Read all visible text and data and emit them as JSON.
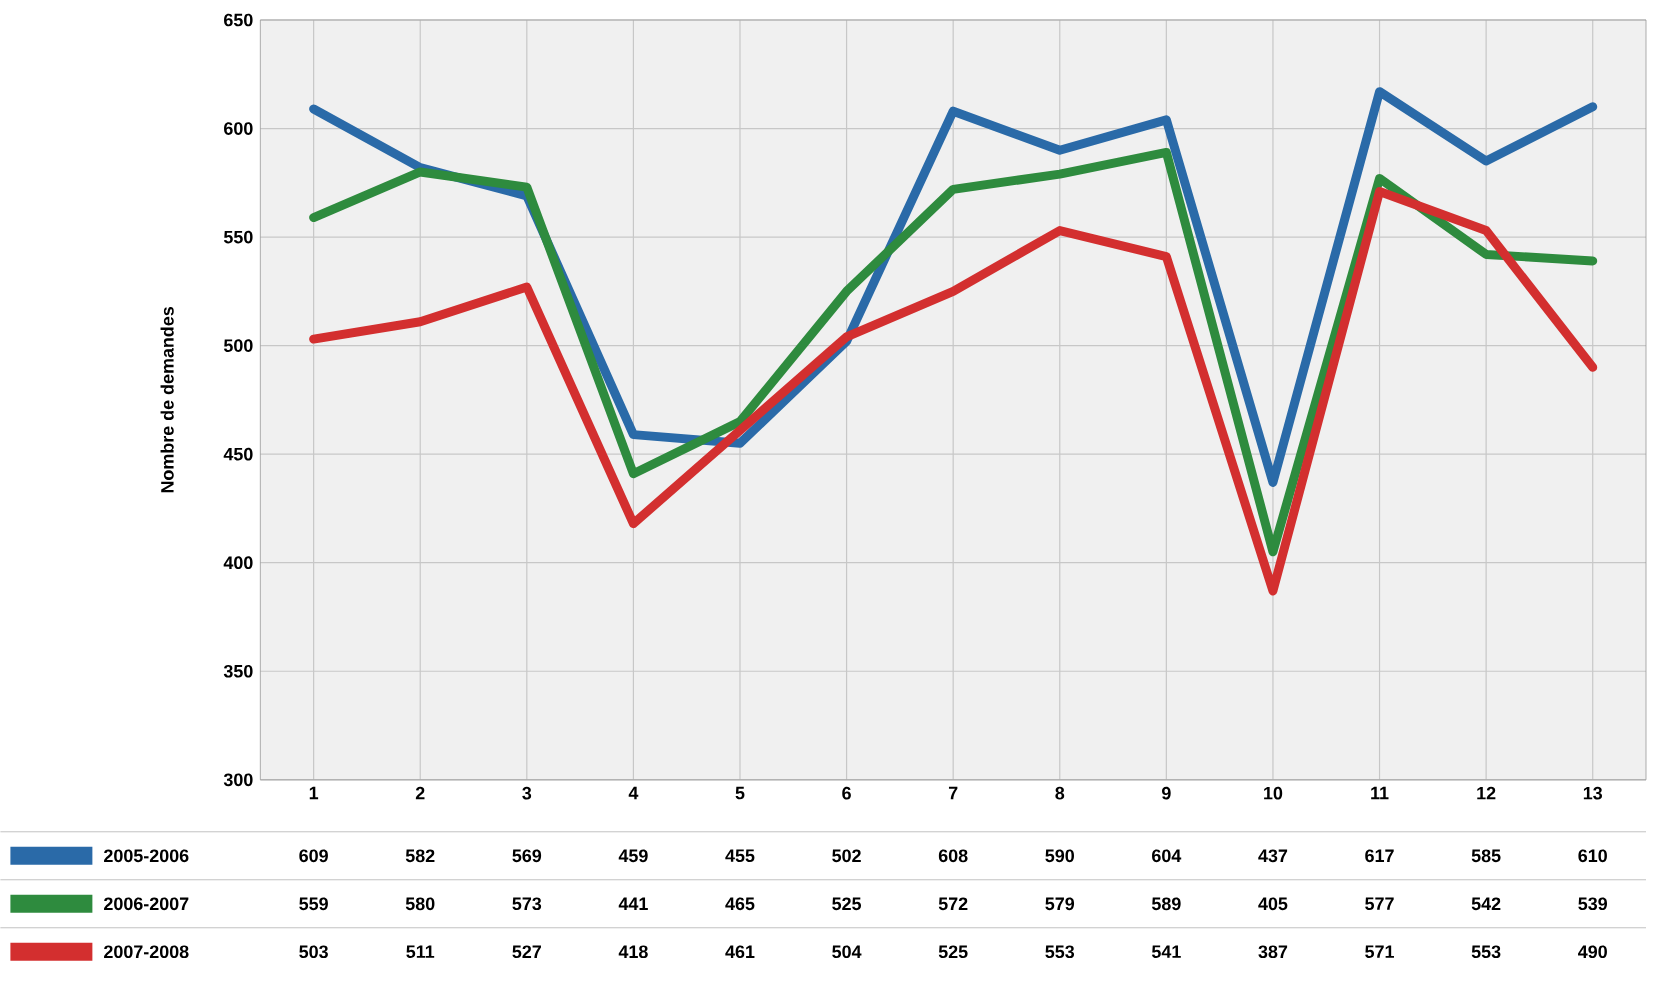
{
  "chart_data": {
    "type": "line",
    "ylabel": "Nombre de demandes",
    "categories": [
      "1",
      "2",
      "3",
      "4",
      "5",
      "6",
      "7",
      "8",
      "9",
      "10",
      "11",
      "12",
      "13"
    ],
    "series": [
      {
        "name": "2005-2006",
        "color": "#2a6aa8",
        "values": [
          609,
          582,
          569,
          459,
          455,
          502,
          608,
          590,
          604,
          437,
          617,
          585,
          610
        ]
      },
      {
        "name": "2006-2007",
        "color": "#2e8b3e",
        "values": [
          559,
          580,
          573,
          441,
          465,
          525,
          572,
          579,
          589,
          405,
          577,
          542,
          539
        ]
      },
      {
        "name": "2007-2008",
        "color": "#d32f2f",
        "values": [
          503,
          511,
          527,
          418,
          461,
          504,
          525,
          553,
          541,
          387,
          571,
          553,
          490
        ]
      }
    ],
    "ylim": [
      300,
      650
    ],
    "yticks": [
      300,
      350,
      400,
      450,
      500,
      550,
      600,
      650
    ],
    "grid": true,
    "legend": "bottom",
    "data_labels": true
  }
}
